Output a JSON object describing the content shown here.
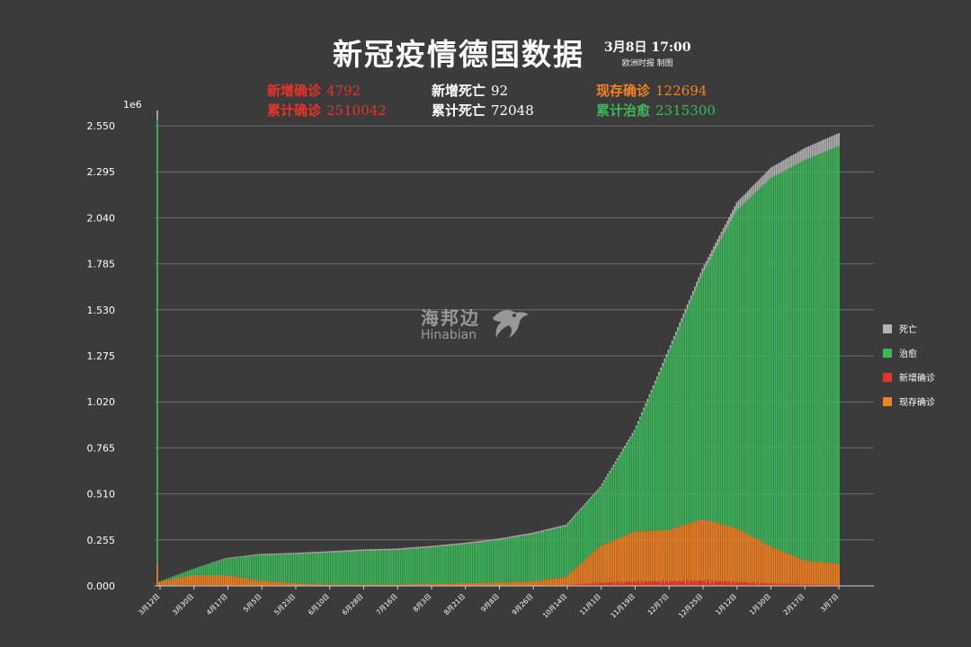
{
  "header": {
    "title": "新冠疫情德国数据",
    "date": "3月8日  17:00",
    "credit": "欧洲时报 制图"
  },
  "stats": {
    "new_confirmed": {
      "label": "新增确诊",
      "value": "4792"
    },
    "new_deaths": {
      "label": "新增死亡",
      "value": "92"
    },
    "active": {
      "label": "现存确诊",
      "value": "122694"
    },
    "total_confirmed": {
      "label": "累计确诊",
      "value": "2510042"
    },
    "total_deaths": {
      "label": "累计死亡",
      "value": "72048"
    },
    "total_recovered": {
      "label": "累计治愈",
      "value": "2315300"
    }
  },
  "watermark": {
    "cn": "海邦边",
    "en": "Hinabian"
  },
  "colors": {
    "death": "#b4b4b4",
    "recovered": "#3cb85a",
    "new": "#e8332a",
    "active": "#f58220",
    "grid": "#6e6e6e",
    "background": "#3b3b3b"
  },
  "chart_data": {
    "type": "bar",
    "stacked": true,
    "y_multiplier_label": "1e6",
    "ylim": [
      0,
      2.55
    ],
    "yticks": [
      "0.000",
      "0.255",
      "0.510",
      "0.765",
      "1.020",
      "1.275",
      "1.530",
      "1.785",
      "2.040",
      "2.295",
      "2.550"
    ],
    "grid": "horizontal",
    "legend_position": "right",
    "legend": [
      {
        "key": "death",
        "label": "死亡"
      },
      {
        "key": "recovered",
        "label": "治愈"
      },
      {
        "key": "new",
        "label": "新增确诊"
      },
      {
        "key": "active",
        "label": "现存确诊"
      }
    ],
    "xticks": [
      "3月12日",
      "3月30日",
      "4月17日",
      "5月5日",
      "5月23日",
      "6月10日",
      "6月28日",
      "7月16日",
      "8月3日",
      "8月21日",
      "9月8日",
      "9月26日",
      "10月14日",
      "11月1日",
      "11月19日",
      "12月7日",
      "12月25日",
      "1月12日",
      "1月30日",
      "2月17日",
      "3月7日"
    ],
    "series_anchors": {
      "note": "per tick: active (现存确诊), recovered (治愈), deaths (死亡), new (新增确诊) in millions",
      "active": [
        0.02,
        0.06,
        0.06,
        0.03,
        0.015,
        0.008,
        0.008,
        0.008,
        0.012,
        0.015,
        0.018,
        0.025,
        0.05,
        0.22,
        0.3,
        0.31,
        0.37,
        0.32,
        0.22,
        0.14,
        0.123
      ],
      "recovered": [
        0.0,
        0.03,
        0.09,
        0.14,
        0.16,
        0.175,
        0.185,
        0.19,
        0.2,
        0.215,
        0.235,
        0.26,
        0.28,
        0.32,
        0.55,
        0.98,
        1.36,
        1.76,
        2.04,
        2.22,
        2.315
      ],
      "deaths": [
        0.0,
        0.001,
        0.004,
        0.007,
        0.008,
        0.009,
        0.009,
        0.009,
        0.009,
        0.009,
        0.009,
        0.0095,
        0.01,
        0.011,
        0.014,
        0.02,
        0.03,
        0.045,
        0.058,
        0.067,
        0.072
      ],
      "new": [
        0.001,
        0.005,
        0.003,
        0.001,
        0.0005,
        0.0004,
        0.0004,
        0.0005,
        0.001,
        0.0012,
        0.0015,
        0.002,
        0.004,
        0.015,
        0.02,
        0.022,
        0.025,
        0.018,
        0.012,
        0.008,
        0.0048
      ]
    },
    "spike_at_start": {
      "recovered": 2.46,
      "deaths": 0.05,
      "active": 0.125
    }
  }
}
